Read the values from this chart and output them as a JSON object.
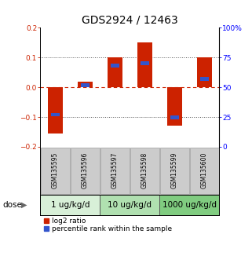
{
  "title": "GDS2924 / 12463",
  "samples": [
    "GSM135595",
    "GSM135596",
    "GSM135597",
    "GSM135598",
    "GSM135599",
    "GSM135600"
  ],
  "log2_ratio": [
    -0.155,
    0.02,
    0.1,
    0.15,
    -0.13,
    0.1
  ],
  "percentile": [
    27,
    52,
    68,
    70,
    25,
    57
  ],
  "dose_groups": [
    {
      "label": "1 ug/kg/d",
      "samples": [
        0,
        1
      ],
      "color": "#d8f0d8"
    },
    {
      "label": "10 ug/kg/d",
      "samples": [
        2,
        3
      ],
      "color": "#b0e0b0"
    },
    {
      "label": "1000 ug/kg/d",
      "samples": [
        4,
        5
      ],
      "color": "#80cc80"
    }
  ],
  "bar_color_red": "#cc2200",
  "bar_color_blue": "#3355cc",
  "ylim_left": [
    -0.2,
    0.2
  ],
  "ylim_right": [
    0,
    100
  ],
  "yticks_left": [
    -0.2,
    -0.1,
    0.0,
    0.1,
    0.2
  ],
  "yticks_right": [
    0,
    25,
    50,
    75,
    100
  ],
  "ytick_labels_right": [
    "0",
    "25",
    "50",
    "75",
    "100%"
  ],
  "hline_zero_color": "#cc2200",
  "hline_dotted_color": "#555555",
  "sample_box_color": "#cccccc",
  "bar_width": 0.5,
  "legend_red_label": "log2 ratio",
  "legend_blue_label": "percentile rank within the sample",
  "dose_label": "dose",
  "title_fontsize": 10,
  "tick_fontsize": 6.5,
  "sample_fontsize": 5.5,
  "dose_fontsize": 7.5,
  "legend_fontsize": 6.5
}
